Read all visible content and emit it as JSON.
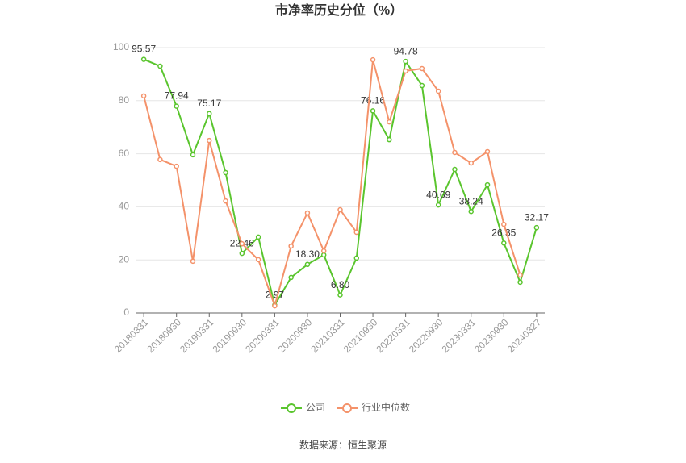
{
  "chart_data": {
    "type": "line",
    "title": "市净率历史分位（%）",
    "categories": [
      "20180331",
      null,
      "20180930",
      null,
      "20190331",
      null,
      "20190930",
      null,
      "20200331",
      null,
      "20200930",
      null,
      "20210331",
      null,
      "20210930",
      null,
      "20220331",
      null,
      "20220930",
      null,
      "20230331",
      null,
      "20230930",
      null,
      "20240327"
    ],
    "series": [
      {
        "name": "公司",
        "color": "#5ac52e",
        "values": [
          95.57,
          93.0,
          77.94,
          59.6,
          75.17,
          52.9,
          22.46,
          28.6,
          2.97,
          13.4,
          18.3,
          21.9,
          6.8,
          20.7,
          76.16,
          65.3,
          94.78,
          85.7,
          40.69,
          54.1,
          38.24,
          48.3,
          26.35,
          11.6,
          32.17
        ],
        "value_labels": [
          "95.57",
          null,
          "77.94",
          null,
          "75.17",
          null,
          "22.46",
          null,
          "2.97",
          null,
          "18.30",
          null,
          "6.80",
          null,
          "76.16",
          null,
          "94.78",
          null,
          "40.69",
          null,
          "38.24",
          null,
          "26.35",
          null,
          "32.17"
        ]
      },
      {
        "name": "行业中位数",
        "color": "#f4926a",
        "values": [
          81.8,
          57.8,
          55.3,
          19.5,
          65.0,
          42.2,
          26.1,
          20.1,
          2.7,
          25.2,
          37.7,
          23.4,
          38.9,
          30.4,
          95.4,
          72.0,
          91.2,
          92.1,
          83.6,
          60.5,
          56.5,
          60.8,
          33.4,
          14.3,
          null
        ]
      }
    ],
    "ylim": [
      0,
      100
    ],
    "yticks": [
      0,
      20,
      40,
      60,
      80,
      100
    ],
    "grid": true,
    "legend": "bottom",
    "source": "数据来源：恒生聚源"
  }
}
